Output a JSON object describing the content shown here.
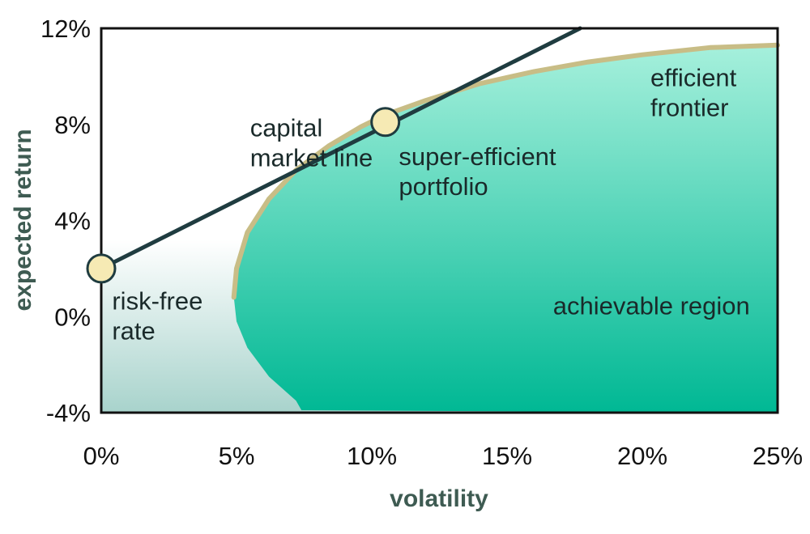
{
  "chart_data": {
    "type": "line",
    "title": "",
    "xlabel": "volatility",
    "ylabel": "expected return",
    "xlim": [
      0,
      25
    ],
    "ylim": [
      -4,
      12
    ],
    "x_ticks": [
      "0%",
      "5%",
      "10%",
      "15%",
      "20%",
      "25%"
    ],
    "y_ticks": [
      "-4%",
      "0%",
      "4%",
      "8%",
      "12%"
    ],
    "x_tick_values": [
      0,
      5,
      10,
      15,
      20,
      25
    ],
    "y_tick_values": [
      -4,
      0,
      4,
      8,
      12
    ],
    "grid": false,
    "series": [
      {
        "name": "capital market line",
        "x": [
          0,
          10.5,
          17.7
        ],
        "y": [
          2.0,
          8.1,
          12.0
        ]
      },
      {
        "name": "efficient frontier",
        "x": [
          4.9,
          5.0,
          5.4,
          6.2,
          7.2,
          8.4,
          9.6,
          10.5,
          12.0,
          14.0,
          16.0,
          18.0,
          20.0,
          22.5,
          25.0
        ],
        "y": [
          0.8,
          2.0,
          3.5,
          4.9,
          6.1,
          7.1,
          7.9,
          8.4,
          9.0,
          9.7,
          10.2,
          10.6,
          10.9,
          11.2,
          11.3
        ]
      }
    ],
    "region_boundary": {
      "x": [
        4.9,
        5.0,
        5.4,
        6.2,
        7.2,
        7.4
      ],
      "y": [
        0.8,
        -0.2,
        -1.3,
        -2.5,
        -3.5,
        -3.9
      ]
    },
    "points": [
      {
        "name": "risk-free rate",
        "x": 0,
        "y": 2.0
      },
      {
        "name": "super-efficient portfolio",
        "x": 10.5,
        "y": 8.1
      }
    ],
    "annotations": [
      {
        "lines": [
          "capital",
          "market line"
        ],
        "x": 5.5,
        "y": 7.5
      },
      {
        "lines": [
          "super-efficient",
          "portfolio"
        ],
        "x": 11.0,
        "y": 6.3
      },
      {
        "lines": [
          "efficient",
          "frontier"
        ],
        "x": 20.3,
        "y": 9.6
      },
      {
        "lines": [
          "risk-free",
          "rate"
        ],
        "x": 0.4,
        "y": 0.3
      },
      {
        "lines": [
          "achievable region"
        ],
        "x": 16.7,
        "y": 0.1
      }
    ],
    "colors": {
      "cml": "#1f3c40",
      "frontier": "#c8bd86",
      "region_top": "#a6f0dc",
      "region_bottom": "#00b894",
      "background_top": "#ffffff",
      "background_bottom": "#a8d3cc",
      "points": "#f6eab4",
      "axis_title": "#3e5b52"
    }
  }
}
